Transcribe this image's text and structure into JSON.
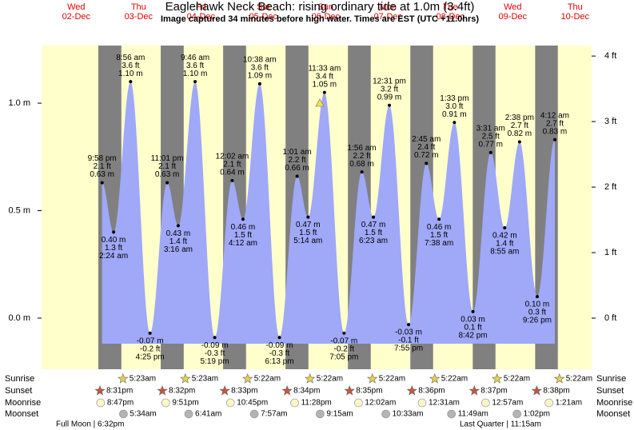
{
  "chart_data": {
    "type": "tide",
    "title": "Eaglehawk Neck Beach: rising  ordinary tide at 1.0m (3.4ft)",
    "subtitle": "Image captured 34 minutes before high water. Times are EST (UTC +11.0hrs)",
    "color": "#a0a8f8",
    "day_color": "#ffffcc",
    "night_color": "#808080",
    "ylim": [
      -0.238,
      1.268
    ],
    "yticks": [
      {
        "value": 0,
        "label": "0.0 m"
      },
      {
        "value": 0.5,
        "label": "0.5 m"
      },
      {
        "value": 1,
        "label": "1.0 m"
      }
    ],
    "y2lim": [
      -0.78,
      4.16
    ],
    "y2ticks": [
      {
        "value": 0,
        "label": "0 ft"
      },
      {
        "value": 1,
        "label": "1 ft"
      },
      {
        "value": 2,
        "label": "2 ft"
      },
      {
        "value": 3,
        "label": "3 ft"
      },
      {
        "value": 4,
        "label": "4 ft"
      }
    ],
    "row_labels": [
      "Sunrise",
      "Sunset",
      "Moonrise",
      "Moonset"
    ],
    "notes": [
      "Full Moon | 6:32pm",
      "Last Quarter | 11:15am"
    ],
    "days": [
      {
        "weekday": "Wed",
        "date": "02-Dec",
        "sunset": "8:31pm",
        "moonrise": "8:47pm",
        "tides": [
          {
            "time": "9:58 pm",
            "value": 0.63,
            "value_label": "0.63 m",
            "ft": 2.1,
            "ft_label": "2.1 ft"
          }
        ]
      },
      {
        "weekday": "Thu",
        "date": "03-Dec",
        "sunrise": "5:23am",
        "sunset": "8:32pm",
        "moonrise": "9:51pm",
        "moonset": "5:34am",
        "tides": [
          {
            "time": "2:24 am",
            "value": 0.4,
            "value_label": "0.40 m",
            "ft": 1.3,
            "ft_label": "1.3 ft"
          },
          {
            "time": "8:56 am",
            "value": 1.1,
            "value_label": "1.10 m",
            "ft": 3.6,
            "ft_label": "3.6 ft"
          },
          {
            "time": "4:25 pm",
            "value": -0.07,
            "value_label": "-0.07 m",
            "ft": -0.2,
            "ft_label": "-0.2 ft"
          },
          {
            "time": "11:01 pm",
            "value": 0.63,
            "value_label": "0.63 m",
            "ft": 2.1,
            "ft_label": "2.1 ft"
          }
        ]
      },
      {
        "weekday": "Fri",
        "date": "04-Dec",
        "sunrise": "5:23am",
        "sunset": "8:33pm",
        "moonrise": "10:45pm",
        "moonset": "6:41am",
        "tides": [
          {
            "time": "3:16 am",
            "value": 0.43,
            "value_label": "0.43 m",
            "ft": 1.4,
            "ft_label": "1.4 ft"
          },
          {
            "time": "9:46 am",
            "value": 1.1,
            "value_label": "1.10 m",
            "ft": 3.6,
            "ft_label": "3.6 ft"
          },
          {
            "time": "5:19 pm",
            "value": -0.09,
            "value_label": "-0.09 m",
            "ft": -0.3,
            "ft_label": "-0.3 ft"
          }
        ]
      },
      {
        "weekday": "Sat",
        "date": "05-Dec",
        "sunrise": "5:22am",
        "sunset": "8:34pm",
        "moonrise": "11:28pm",
        "moonset": "7:57am",
        "tides": [
          {
            "time": "12:02 am",
            "value": 0.64,
            "value_label": "0.64 m",
            "ft": 2.1,
            "ft_label": "2.1 ft"
          },
          {
            "time": "4:12 am",
            "value": 0.46,
            "value_label": "0.46 m",
            "ft": 1.5,
            "ft_label": "1.5 ft"
          },
          {
            "time": "10:38 am",
            "value": 1.09,
            "value_label": "1.09 m",
            "ft": 3.6,
            "ft_label": "3.6 ft"
          },
          {
            "time": "6:13 pm",
            "value": -0.09,
            "value_label": "-0.09 m",
            "ft": -0.3,
            "ft_label": "-0.3 ft"
          }
        ]
      },
      {
        "weekday": "Sun",
        "date": "06-Dec",
        "sunrise": "5:22am",
        "sunset": "8:35pm",
        "moonset": "9:15am",
        "tides": [
          {
            "time": "1:01 am",
            "value": 0.66,
            "value_label": "0.66 m",
            "ft": 2.2,
            "ft_label": "2.2 ft"
          },
          {
            "time": "5:14 am",
            "value": 0.47,
            "value_label": "0.47 m",
            "ft": 1.5,
            "ft_label": "1.5 ft"
          },
          {
            "time": "11:33 am",
            "value": 1.05,
            "value_label": "1.05 m",
            "ft": 3.4,
            "ft_label": "3.4 ft"
          },
          {
            "time": "7:05 pm",
            "value": -0.07,
            "value_label": "-0.07 m",
            "ft": -0.2,
            "ft_label": "-0.2 ft"
          }
        ]
      },
      {
        "weekday": "Mon",
        "date": "07-Dec",
        "sunrise": "5:22am",
        "sunset": "8:36pm",
        "moonrise": "12:02am",
        "moonset": "10:33am",
        "tides": [
          {
            "time": "1:56 am",
            "value": 0.68,
            "value_label": "0.68 m",
            "ft": 2.2,
            "ft_label": "2.2 ft"
          },
          {
            "time": "6:23 am",
            "value": 0.47,
            "value_label": "0.47 m",
            "ft": 1.5,
            "ft_label": "1.5 ft"
          },
          {
            "time": "12:31 pm",
            "value": 0.99,
            "value_label": "0.99 m",
            "ft": 3.2,
            "ft_label": "3.2 ft"
          },
          {
            "time": "7:55 pm",
            "value": -0.03,
            "value_label": "-0.03 m",
            "ft": -0.1,
            "ft_label": "-0.1 ft"
          }
        ]
      },
      {
        "weekday": "Tue",
        "date": "08-Dec",
        "sunrise": "5:22am",
        "sunset": "8:37pm",
        "moonrise": "12:31am",
        "moonset": "11:49am",
        "tides": [
          {
            "time": "2:45 am",
            "value": 0.72,
            "value_label": "0.72 m",
            "ft": 2.4,
            "ft_label": "2.4 ft"
          },
          {
            "time": "7:38 am",
            "value": 0.46,
            "value_label": "0.46 m",
            "ft": 1.5,
            "ft_label": "1.5 ft"
          },
          {
            "time": "1:33 pm",
            "value": 0.91,
            "value_label": "0.91 m",
            "ft": 3.0,
            "ft_label": "3.0 ft"
          },
          {
            "time": "8:42 pm",
            "value": 0.03,
            "value_label": "0.03 m",
            "ft": 0.1,
            "ft_label": "0.1 ft"
          }
        ]
      },
      {
        "weekday": "Wed",
        "date": "09-Dec",
        "sunrise": "5:22am",
        "sunset": "8:38pm",
        "moonrise": "12:57am",
        "moonset": "1:02pm",
        "tides": [
          {
            "time": "3:31 am",
            "value": 0.77,
            "value_label": "0.77 m",
            "ft": 2.5,
            "ft_label": "2.5 ft"
          },
          {
            "time": "8:55 am",
            "value": 0.42,
            "value_label": "0.42 m",
            "ft": 1.4,
            "ft_label": "1.4 ft"
          },
          {
            "time": "2:38 pm",
            "value": 0.82,
            "value_label": "0.82 m",
            "ft": 2.7,
            "ft_label": "2.7 ft"
          },
          {
            "time": "9:26 pm",
            "value": 0.1,
            "value_label": "0.10 m",
            "ft": 0.3,
            "ft_label": "0.3 ft"
          }
        ]
      },
      {
        "weekday": "Thu",
        "date": "10-Dec",
        "sunrise": "5:22am",
        "moonrise": "1:21am",
        "tides": [
          {
            "time": "4:12 am",
            "value": 0.83,
            "value_label": "0.83 m",
            "ft": 2.7,
            "ft_label": "2.7 ft"
          }
        ]
      }
    ]
  }
}
